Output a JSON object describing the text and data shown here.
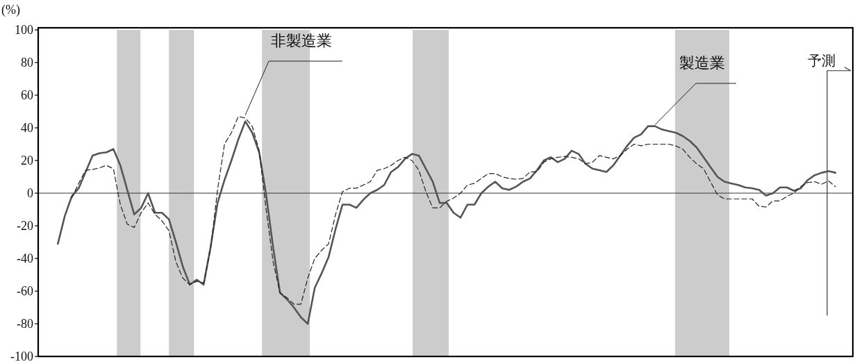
{
  "chart_data": {
    "type": "line",
    "ylabel": "(%)",
    "ylim": [
      -100,
      100
    ],
    "yticks": [
      -100,
      -80,
      -60,
      -40,
      -20,
      0,
      20,
      40,
      60,
      80,
      100
    ],
    "grid": false,
    "legend": false,
    "annotations": [
      "予測"
    ],
    "categories": [
      null,
      null,
      null,
      null,
      null,
      null,
      null,
      null,
      null,
      null,
      null,
      null,
      null,
      null,
      null,
      null,
      null,
      null,
      null,
      null,
      null,
      null,
      null,
      null,
      null,
      null,
      null,
      null,
      null,
      null,
      null,
      null,
      null,
      null,
      null,
      null,
      null,
      null,
      null,
      null,
      null,
      null,
      null,
      null,
      null,
      null,
      null,
      null,
      null,
      null,
      null,
      null,
      null,
      null,
      null,
      null,
      null,
      null,
      null,
      null,
      null,
      null,
      null,
      null,
      null,
      null,
      null,
      null,
      null,
      null,
      null,
      null,
      null,
      null,
      null,
      null,
      null,
      null,
      null,
      null,
      null,
      null,
      null,
      null,
      null,
      null,
      null,
      null,
      null,
      null,
      null,
      null,
      null,
      null,
      null,
      null,
      null,
      null,
      null,
      null,
      null,
      null,
      null,
      null,
      null,
      null,
      null,
      null,
      null,
      null,
      null,
      null,
      null
    ],
    "series": [
      {
        "name": "製造業",
        "color": "#555555",
        "line_style": "solid",
        "values": [
          -31,
          -14,
          -2,
          3,
          13,
          23,
          24.5,
          25,
          27,
          17,
          2,
          -13,
          -9,
          0,
          -12,
          -12,
          -16,
          -30,
          -45,
          -56,
          -53,
          -56,
          -33,
          -6,
          8,
          20,
          33,
          44,
          37,
          25,
          -1,
          -33,
          -61,
          -65,
          -70,
          -76,
          -80,
          -58,
          -49,
          -39,
          -22,
          -7,
          -7,
          -9,
          -4,
          0,
          2,
          5,
          13,
          16,
          21,
          24,
          23,
          15,
          7,
          -6,
          -6,
          -12,
          -15,
          -7,
          -7,
          0,
          4,
          7,
          3,
          2,
          4,
          7,
          9,
          14,
          20,
          22,
          19,
          21,
          26,
          24,
          18,
          15,
          14,
          13,
          17,
          23,
          29,
          34,
          36,
          41,
          41,
          39,
          38,
          37,
          35,
          32,
          28,
          22,
          16,
          10,
          7,
          6,
          5,
          3.5,
          3,
          2,
          -1.5,
          0,
          3.5,
          3.5,
          1.5,
          3,
          8,
          11,
          12.5,
          13.5,
          12.5
        ]
      },
      {
        "name": "非製造業",
        "color": "#222222",
        "line_style": "dashed",
        "values": [
          null,
          null,
          -3,
          6,
          14,
          14.5,
          15.5,
          17,
          15,
          -7,
          -19,
          -21,
          -12,
          -6,
          -13,
          -17,
          -23,
          -42,
          -52,
          -56,
          -54,
          -55,
          -34,
          2,
          30,
          37,
          47,
          46,
          41,
          26,
          -10,
          -42,
          -61,
          -64,
          -68,
          -68,
          -52,
          -40,
          -35,
          -31,
          -13,
          1,
          3,
          3,
          5,
          7,
          14,
          15,
          17,
          20,
          22,
          20,
          14,
          1,
          -9,
          -9,
          -5,
          -3,
          0,
          5,
          6,
          9,
          12,
          12,
          10,
          9,
          8.5,
          9,
          13,
          13,
          19,
          21,
          22,
          22.5,
          22,
          21,
          18,
          19,
          23,
          22,
          21,
          23,
          27,
          30,
          29,
          30,
          30,
          30,
          30,
          29,
          27,
          22,
          18,
          15,
          7,
          -1,
          -3.5,
          -3.5,
          -3.5,
          -3.5,
          -3.5,
          -8,
          -8.5,
          -4.7,
          -4.7,
          -2,
          0,
          4,
          6.5,
          7,
          5.5,
          7.5,
          4
        ]
      }
    ],
    "ref_lines": [
      {
        "axis": "y",
        "value": 0,
        "color": "#333333",
        "line_style": "solid"
      }
    ]
  }
}
